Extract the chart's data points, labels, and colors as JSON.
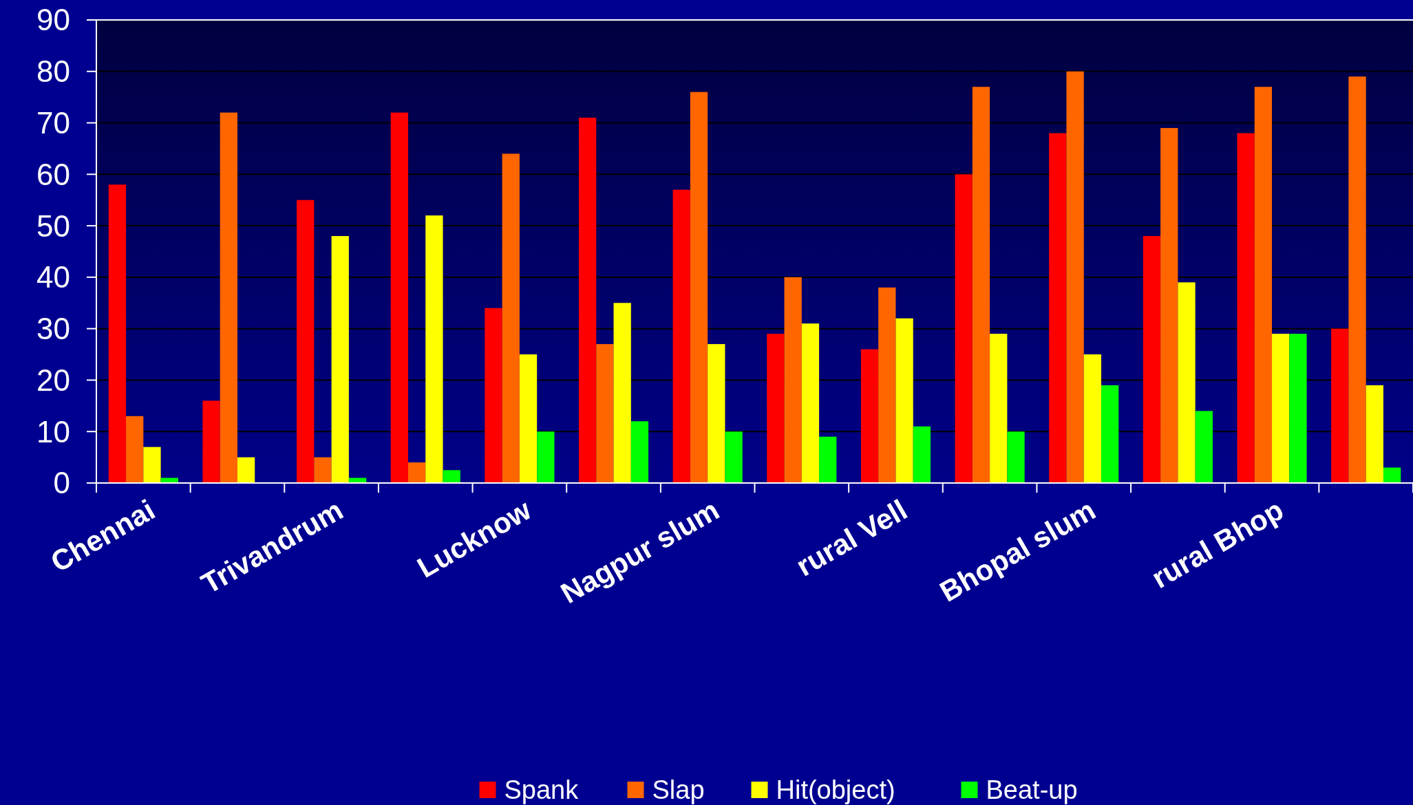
{
  "chart_data": {
    "type": "bar",
    "categories": [
      "Chennai",
      null,
      "Trivandrum",
      null,
      "Lucknow",
      null,
      "Nagpur slum",
      null,
      "rural Vell",
      null,
      "Bhopal slum",
      null,
      "rural Bhop",
      null
    ],
    "series": [
      {
        "name": "Spank",
        "color": "#ff0000",
        "values": [
          58,
          16,
          55,
          72,
          34,
          71,
          57,
          29,
          26,
          60,
          68,
          48,
          68,
          30
        ]
      },
      {
        "name": "Slap",
        "color": "#ff6600",
        "values": [
          13,
          72,
          5,
          4,
          64,
          27,
          76,
          40,
          38,
          77,
          80,
          69,
          77,
          79
        ]
      },
      {
        "name": "Hit(object)",
        "color": "#ffff00",
        "values": [
          7,
          5,
          48,
          52,
          25,
          35,
          27,
          31,
          32,
          29,
          25,
          39,
          29,
          19
        ]
      },
      {
        "name": "Beat-up",
        "color": "#00ff00",
        "values": [
          1,
          0,
          1,
          2.5,
          10,
          12,
          10,
          9,
          11,
          10,
          19,
          14,
          29,
          3
        ]
      }
    ],
    "ylim": [
      0,
      90
    ],
    "yticks": [
      0,
      10,
      20,
      30,
      40,
      50,
      60,
      70,
      80,
      90
    ],
    "grid": "y",
    "legend": "bottom"
  }
}
